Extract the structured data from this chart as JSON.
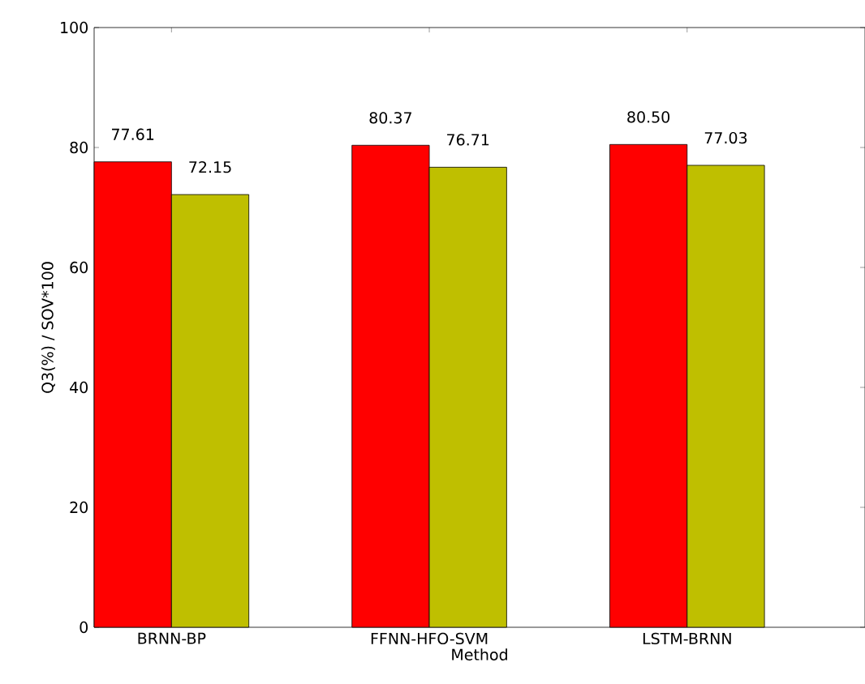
{
  "chart_data": {
    "type": "bar",
    "xlabel": "Method",
    "ylabel": "Q3(%) / SOV*100",
    "categories": [
      "BRNN-BP",
      "FFNN-HFO-SVM",
      "LSTM-BRNN"
    ],
    "series": [
      {
        "color": "#ff0000",
        "values": [
          77.61,
          80.37,
          80.5
        ],
        "value_labels": [
          "77.61",
          "80.37",
          "80.50"
        ]
      },
      {
        "color": "#bfbf00",
        "values": [
          72.15,
          76.71,
          77.03
        ],
        "value_labels": [
          "72.15",
          "76.71",
          "77.03"
        ]
      }
    ],
    "ylim": [
      0,
      100
    ],
    "yticks": [
      0,
      20,
      40,
      60,
      80,
      100
    ],
    "grid": false
  }
}
